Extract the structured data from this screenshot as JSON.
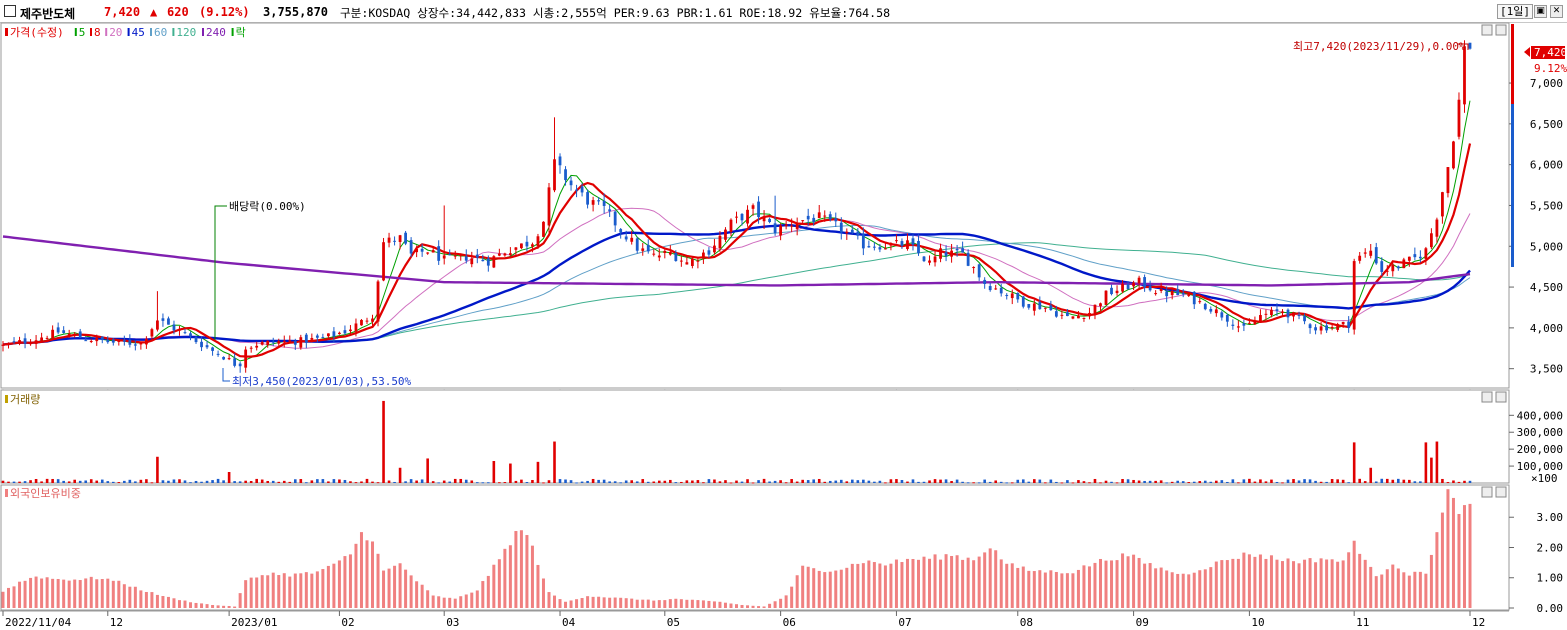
{
  "header": {
    "name": "제주반도체",
    "price": "7,420",
    "change_arrow": "▲",
    "change": "620",
    "change_pct": "(9.12%)",
    "volume": "3,755,870",
    "info": "구분:KOSDAQ 상장수:34,442,833 시총:2,555억 PER:9.63 PBR:1.61 ROE:18.92 유보율:764.58",
    "period": "[1일]",
    "restore_icon": "restore-icon",
    "close_icon": "close-icon"
  },
  "colors": {
    "up": "#e00000",
    "down": "#1a5ccc",
    "ma5": "#00a000",
    "ma8": "#e00000",
    "ma20": "#d070c0",
    "ma45": "#0018c8",
    "ma60": "#60a0c8",
    "ma120": "#40b090",
    "ma240": "#8020b0",
    "grid": "#dcdcdc",
    "volume_label": "#806000",
    "foreign_bar": "#f08080"
  },
  "legend": {
    "price": "가격(수정)",
    "items": [
      {
        "label": "5",
        "key": "ma5"
      },
      {
        "label": "8",
        "key": "ma8"
      },
      {
        "label": "20",
        "key": "ma20"
      },
      {
        "label": "45",
        "key": "ma45"
      },
      {
        "label": "60",
        "key": "ma60"
      },
      {
        "label": "120",
        "key": "ma120"
      },
      {
        "label": "240",
        "key": "ma240"
      },
      {
        "label": "락",
        "key": "ma5"
      }
    ]
  },
  "annotations": {
    "high": "최고7,420(2023/11/29),0.00%",
    "low": "최저3,450(2023/01/03),53.50%",
    "dividend": "배당락(0.00%)",
    "last_price": "7,420",
    "last_pct": "9.12%"
  },
  "panels": {
    "volume_label": "거래량",
    "volume_unit": "×100",
    "foreign_label": "외국인보유비중"
  },
  "chart_data": [
    {
      "type": "candlestick",
      "title": "가격(수정)",
      "y_ticks": [
        "3,500",
        "4,000",
        "4,500",
        "5,000",
        "5,500",
        "6,000",
        "6,500",
        "7,000"
      ],
      "ylim": [
        3300,
        7650
      ],
      "x_ticks": [
        "2022/11/04",
        "12",
        "2023/01",
        "02",
        "03",
        "04",
        "05",
        "06",
        "07",
        "08",
        "09",
        "10",
        "11",
        "12"
      ],
      "x_tick_index": [
        0,
        19,
        41,
        61,
        80,
        101,
        120,
        141,
        162,
        184,
        205,
        226,
        245,
        266
      ],
      "n_days": 266,
      "high": {
        "value": 7420,
        "date": "2023/11/29"
      },
      "low": {
        "value": 3450,
        "date": "2023/01/03"
      },
      "close_anchors": [
        [
          0,
          3780
        ],
        [
          5,
          3850
        ],
        [
          10,
          3950
        ],
        [
          15,
          3870
        ],
        [
          20,
          3820
        ],
        [
          25,
          3810
        ],
        [
          28,
          4100
        ],
        [
          32,
          3960
        ],
        [
          35,
          3840
        ],
        [
          38,
          3720
        ],
        [
          40,
          3650
        ],
        [
          42,
          3560
        ],
        [
          44,
          3760
        ],
        [
          46,
          3800
        ],
        [
          50,
          3830
        ],
        [
          54,
          3840
        ],
        [
          58,
          3870
        ],
        [
          62,
          3960
        ],
        [
          65,
          4070
        ],
        [
          67,
          4160
        ],
        [
          69,
          5050
        ],
        [
          72,
          5100
        ],
        [
          74,
          4890
        ],
        [
          77,
          4950
        ],
        [
          80,
          4830
        ],
        [
          84,
          4870
        ],
        [
          88,
          4820
        ],
        [
          91,
          4940
        ],
        [
          96,
          5060
        ],
        [
          98,
          5310
        ],
        [
          100,
          6020
        ],
        [
          103,
          5750
        ],
        [
          106,
          5560
        ],
        [
          109,
          5450
        ],
        [
          112,
          5200
        ],
        [
          115,
          4980
        ],
        [
          118,
          4880
        ],
        [
          121,
          4920
        ],
        [
          124,
          4800
        ],
        [
          128,
          4950
        ],
        [
          132,
          5280
        ],
        [
          136,
          5450
        ],
        [
          140,
          5200
        ],
        [
          144,
          5310
        ],
        [
          148,
          5350
        ],
        [
          152,
          5210
        ],
        [
          156,
          5020
        ],
        [
          160,
          5010
        ],
        [
          164,
          5030
        ],
        [
          168,
          4790
        ],
        [
          170,
          4920
        ],
        [
          174,
          4900
        ],
        [
          176,
          4740
        ],
        [
          178,
          4550
        ],
        [
          181,
          4450
        ],
        [
          185,
          4310
        ],
        [
          189,
          4250
        ],
        [
          193,
          4120
        ],
        [
          197,
          4190
        ],
        [
          200,
          4410
        ],
        [
          203,
          4490
        ],
        [
          206,
          4560
        ],
        [
          210,
          4430
        ],
        [
          214,
          4400
        ],
        [
          218,
          4280
        ],
        [
          222,
          4120
        ],
        [
          225,
          3980
        ],
        [
          228,
          4150
        ],
        [
          232,
          4210
        ],
        [
          235,
          4110
        ],
        [
          238,
          4000
        ],
        [
          241,
          4020
        ],
        [
          244,
          4050
        ],
        [
          245,
          4820
        ],
        [
          248,
          4950
        ],
        [
          250,
          4700
        ],
        [
          253,
          4760
        ],
        [
          256,
          4850
        ],
        [
          258,
          4950
        ],
        [
          260,
          5380
        ],
        [
          262,
          5980
        ],
        [
          263,
          6350
        ],
        [
          264,
          6780
        ],
        [
          265,
          7420
        ]
      ]
    },
    {
      "type": "bar",
      "title": "거래량",
      "unit": "×100",
      "y_ticks": [
        "100,000",
        "200,000",
        "300,000",
        "400,000"
      ],
      "ylim": [
        0,
        520000
      ],
      "spikes": [
        [
          28,
          155000
        ],
        [
          41,
          65000
        ],
        [
          69,
          485000
        ],
        [
          72,
          90000
        ],
        [
          77,
          145000
        ],
        [
          89,
          130000
        ],
        [
          92,
          115000
        ],
        [
          97,
          125000
        ],
        [
          100,
          245000
        ],
        [
          245,
          240000
        ],
        [
          248,
          90000
        ],
        [
          258,
          240000
        ],
        [
          259,
          150000
        ],
        [
          260,
          245000
        ]
      ]
    },
    {
      "type": "bar",
      "title": "외국인보유비중",
      "y_ticks": [
        "0.00",
        "1.00",
        "2.00",
        "3.00"
      ],
      "ylim": [
        0,
        3.9
      ],
      "ratio_anchors": [
        [
          0,
          0.55
        ],
        [
          3,
          0.85
        ],
        [
          6,
          1.05
        ],
        [
          10,
          0.95
        ],
        [
          14,
          0.95
        ],
        [
          18,
          1.0
        ],
        [
          22,
          0.8
        ],
        [
          26,
          0.55
        ],
        [
          30,
          0.35
        ],
        [
          34,
          0.2
        ],
        [
          38,
          0.1
        ],
        [
          42,
          0.05
        ],
        [
          44,
          0.9
        ],
        [
          48,
          1.15
        ],
        [
          52,
          1.1
        ],
        [
          56,
          1.15
        ],
        [
          60,
          1.4
        ],
        [
          63,
          1.8
        ],
        [
          65,
          2.45
        ],
        [
          67,
          2.3
        ],
        [
          69,
          1.2
        ],
        [
          72,
          1.45
        ],
        [
          75,
          0.9
        ],
        [
          78,
          0.4
        ],
        [
          82,
          0.3
        ],
        [
          86,
          0.6
        ],
        [
          90,
          1.6
        ],
        [
          93,
          2.5
        ],
        [
          95,
          2.45
        ],
        [
          97,
          1.5
        ],
        [
          99,
          0.5
        ],
        [
          102,
          0.2
        ],
        [
          106,
          0.4
        ],
        [
          110,
          0.35
        ],
        [
          114,
          0.3
        ],
        [
          118,
          0.25
        ],
        [
          122,
          0.3
        ],
        [
          126,
          0.25
        ],
        [
          130,
          0.2
        ],
        [
          134,
          0.1
        ],
        [
          138,
          0.05
        ],
        [
          142,
          0.4
        ],
        [
          145,
          1.35
        ],
        [
          148,
          1.25
        ],
        [
          152,
          1.3
        ],
        [
          156,
          1.55
        ],
        [
          160,
          1.45
        ],
        [
          164,
          1.6
        ],
        [
          168,
          1.65
        ],
        [
          172,
          1.75
        ],
        [
          176,
          1.6
        ],
        [
          179,
          2.05
        ],
        [
          182,
          1.45
        ],
        [
          186,
          1.25
        ],
        [
          190,
          1.2
        ],
        [
          194,
          1.2
        ],
        [
          198,
          1.5
        ],
        [
          201,
          1.65
        ],
        [
          204,
          1.75
        ],
        [
          207,
          1.5
        ],
        [
          210,
          1.3
        ],
        [
          214,
          1.1
        ],
        [
          218,
          1.35
        ],
        [
          222,
          1.6
        ],
        [
          226,
          1.8
        ],
        [
          229,
          1.7
        ],
        [
          232,
          1.6
        ],
        [
          236,
          1.55
        ],
        [
          240,
          1.65
        ],
        [
          243,
          1.5
        ],
        [
          245,
          2.2
        ],
        [
          247,
          1.6
        ],
        [
          249,
          1.0
        ],
        [
          252,
          1.5
        ],
        [
          255,
          1.1
        ],
        [
          258,
          1.2
        ],
        [
          260,
          2.45
        ],
        [
          262,
          3.75
        ],
        [
          264,
          3.3
        ],
        [
          266,
          3.25
        ]
      ]
    }
  ]
}
